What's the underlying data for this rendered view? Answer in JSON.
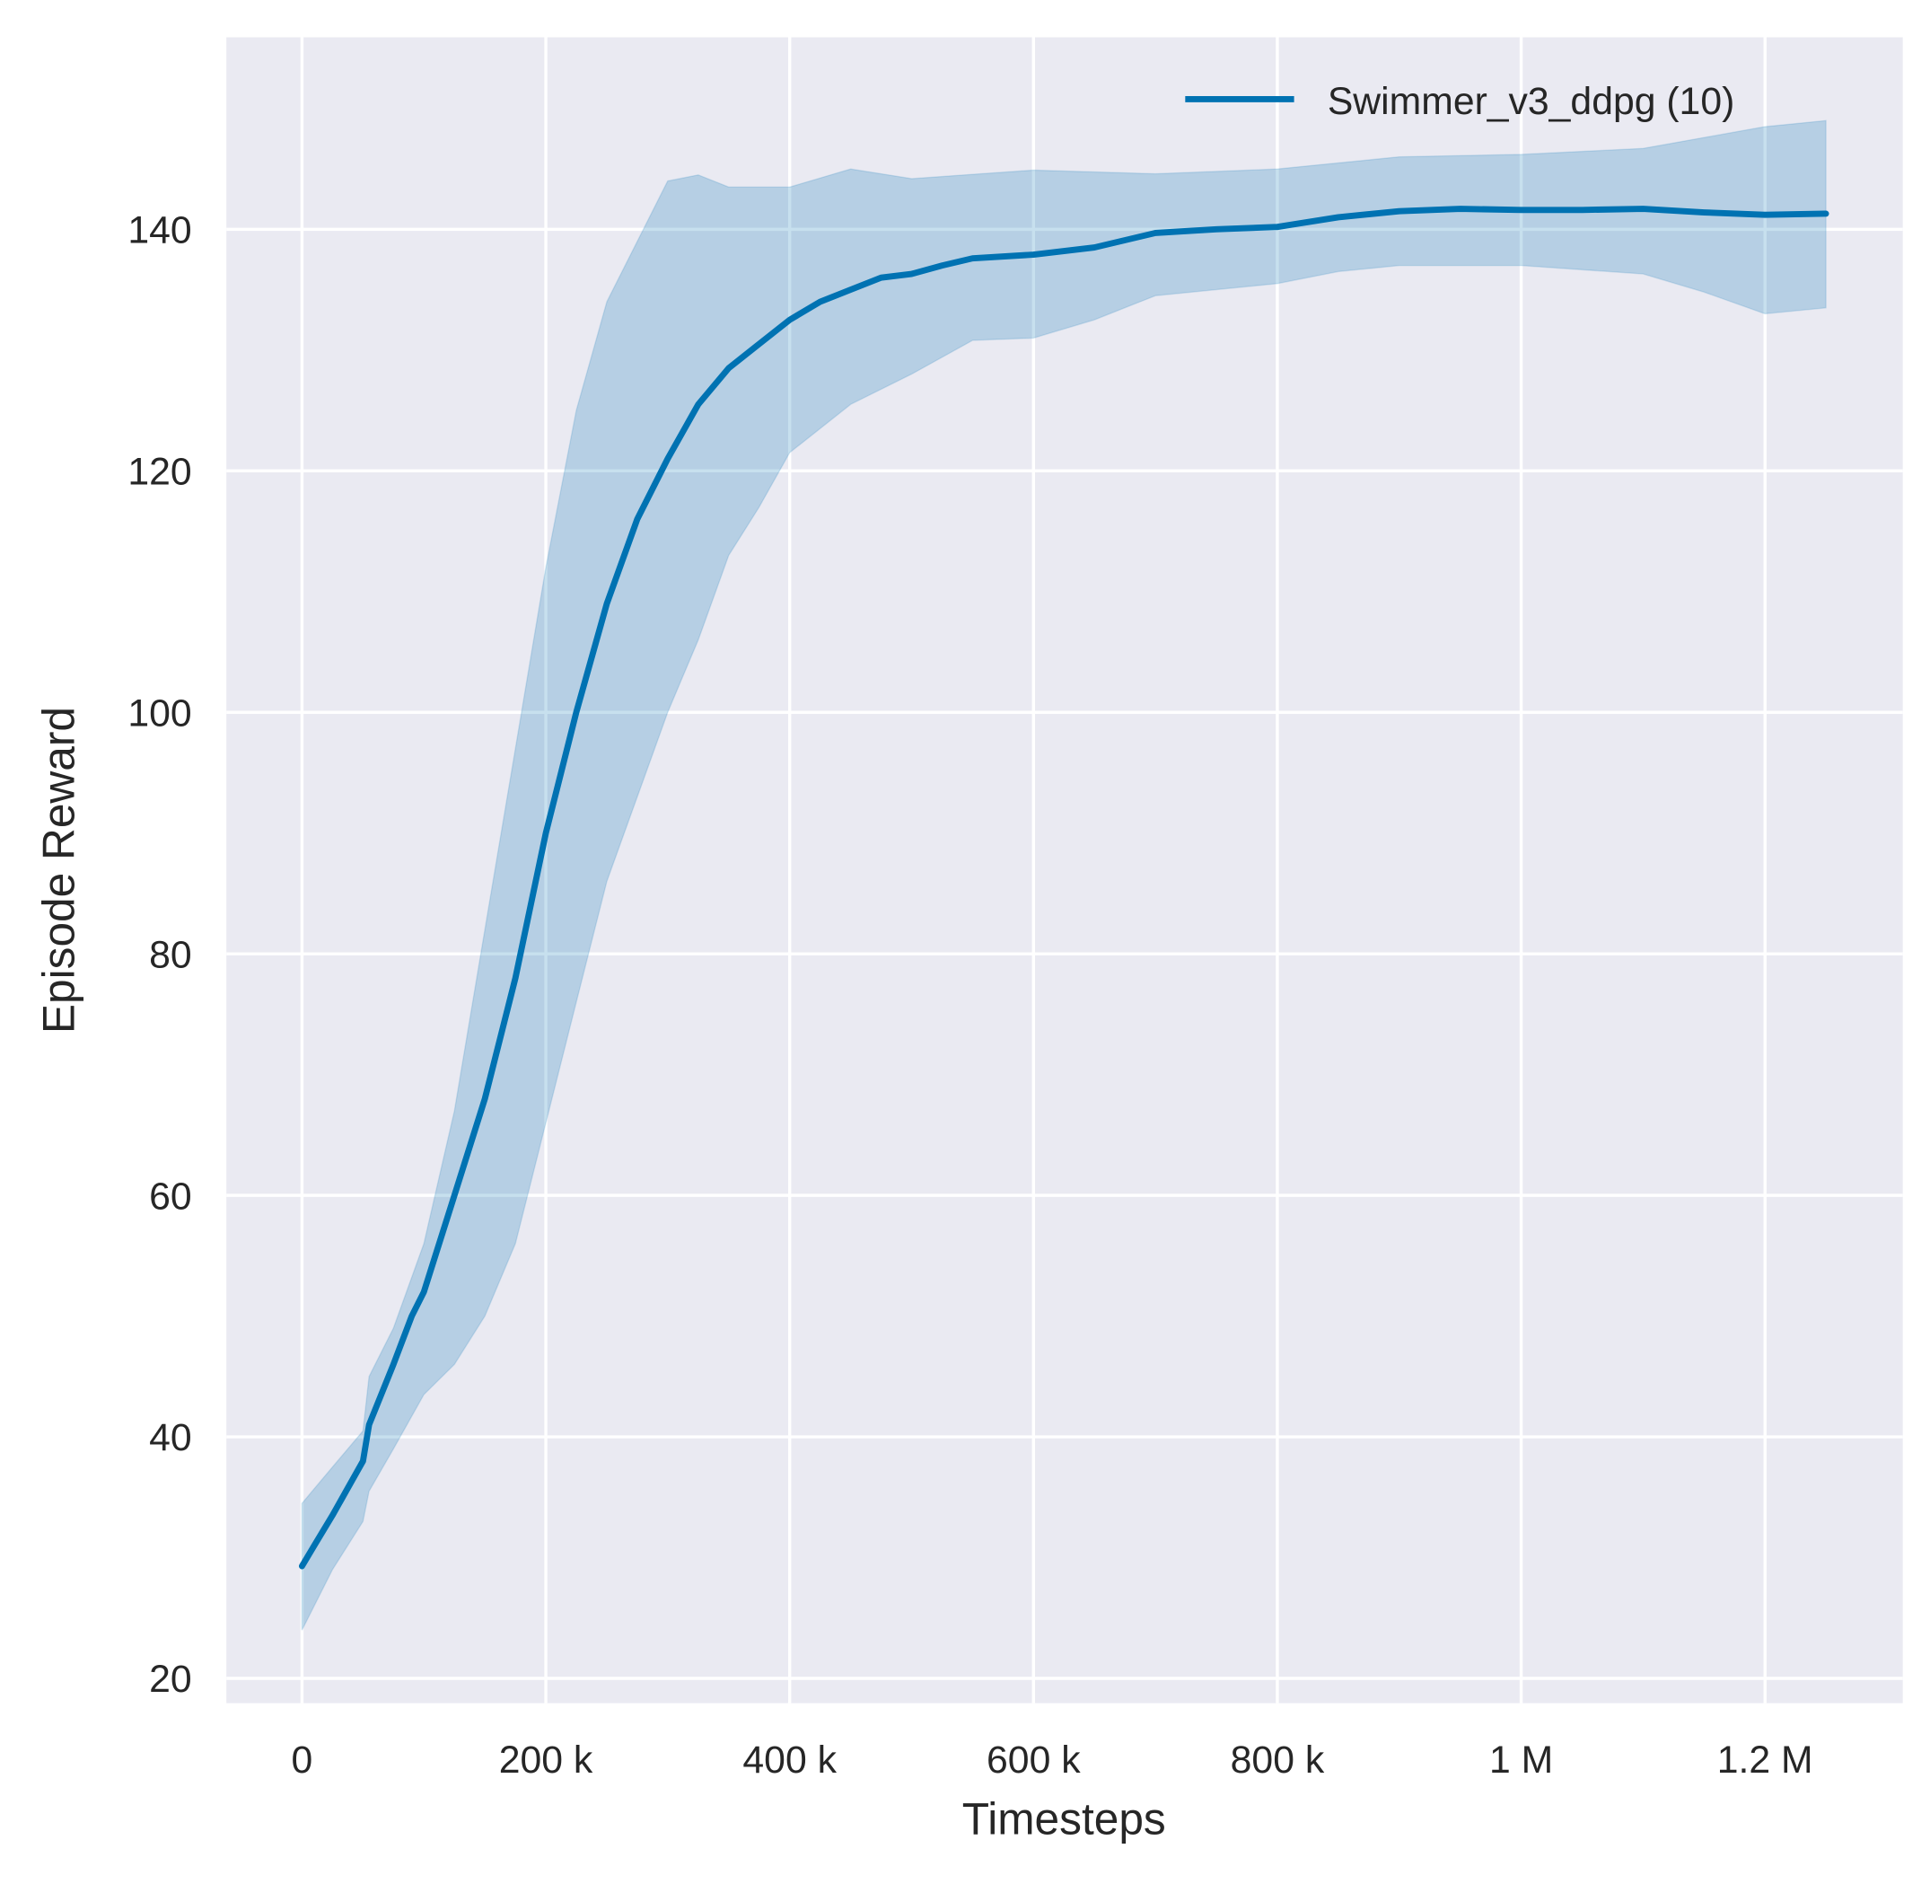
{
  "chart_data": {
    "type": "line",
    "title": "",
    "xlabel": "Timesteps",
    "ylabel": "Episode Reward",
    "xlim": [
      -62000,
      1313000
    ],
    "ylim": [
      17.95,
      155.9
    ],
    "grid": true,
    "legend_placement": "top-right",
    "colors": {
      "line": "#0072b2",
      "band": "#0072b2",
      "background": "#eaeaf2",
      "grid": "#ffffff"
    },
    "x_ticks": [
      0,
      200000,
      400000,
      600000,
      800000,
      1000000,
      1200000
    ],
    "x_tick_labels": [
      "0",
      "200 k",
      "400 k",
      "600 k",
      "800 k",
      "1 M",
      "1.2 M"
    ],
    "y_ticks": [
      20,
      40,
      60,
      80,
      100,
      120,
      140
    ],
    "y_tick_labels": [
      "20",
      "40",
      "60",
      "80",
      "100",
      "120",
      "140"
    ],
    "series": [
      {
        "name": "Swimmer_v3_ddpg (10)",
        "mean": {
          "x": [
            0,
            10000,
            25000,
            50000,
            55000,
            75000,
            90000,
            100000,
            125000,
            150000,
            175000,
            200000,
            225000,
            250000,
            275000,
            300000,
            325000,
            350000,
            375000,
            400000,
            425000,
            450000,
            475000,
            500000,
            525000,
            550000,
            600000,
            650000,
            700000,
            750000,
            800000,
            850000,
            900000,
            950000,
            1000000,
            1050000,
            1100000,
            1150000,
            1200000,
            1250000
          ],
          "y": [
            29.3,
            31,
            33.5,
            38,
            41,
            46,
            50,
            52,
            60,
            68,
            78,
            90,
            100,
            109,
            116,
            121,
            125.5,
            128.5,
            130.5,
            132.5,
            134,
            135,
            136,
            136.3,
            137,
            137.6,
            137.9,
            138.5,
            139.7,
            140,
            140.2,
            141,
            141.5,
            141.7,
            141.6,
            141.6,
            141.7,
            141.4,
            141.2,
            141.3
          ]
        },
        "upper": {
          "x": [
            0,
            25000,
            50000,
            55000,
            75000,
            100000,
            125000,
            150000,
            175000,
            200000,
            225000,
            250000,
            275000,
            300000,
            325000,
            350000,
            400000,
            450000,
            500000,
            600000,
            700000,
            800000,
            900000,
            1000000,
            1100000,
            1200000,
            1250000
          ],
          "y": [
            34.5,
            37.5,
            40.5,
            45,
            49,
            56,
            67,
            82,
            97,
            112,
            125,
            134,
            139,
            144,
            144.5,
            143.5,
            143.5,
            145,
            144.2,
            144.9,
            144.6,
            145,
            146,
            146.2,
            146.7,
            148.5,
            149
          ]
        },
        "lower": {
          "x": [
            0,
            25000,
            50000,
            55000,
            75000,
            100000,
            125000,
            150000,
            175000,
            200000,
            225000,
            250000,
            275000,
            300000,
            325000,
            350000,
            375000,
            400000,
            450000,
            500000,
            550000,
            600000,
            650000,
            700000,
            750000,
            800000,
            850000,
            900000,
            1000000,
            1100000,
            1150000,
            1200000,
            1250000
          ],
          "y": [
            24,
            29,
            33,
            35.5,
            39,
            43.5,
            46,
            50,
            56,
            66,
            76,
            86,
            93,
            100,
            106,
            113,
            117,
            121.5,
            125.5,
            128,
            130.8,
            131,
            132.5,
            134.5,
            135,
            135.5,
            136.5,
            137,
            137,
            136.3,
            134.8,
            133,
            133.5
          ]
        }
      }
    ]
  }
}
